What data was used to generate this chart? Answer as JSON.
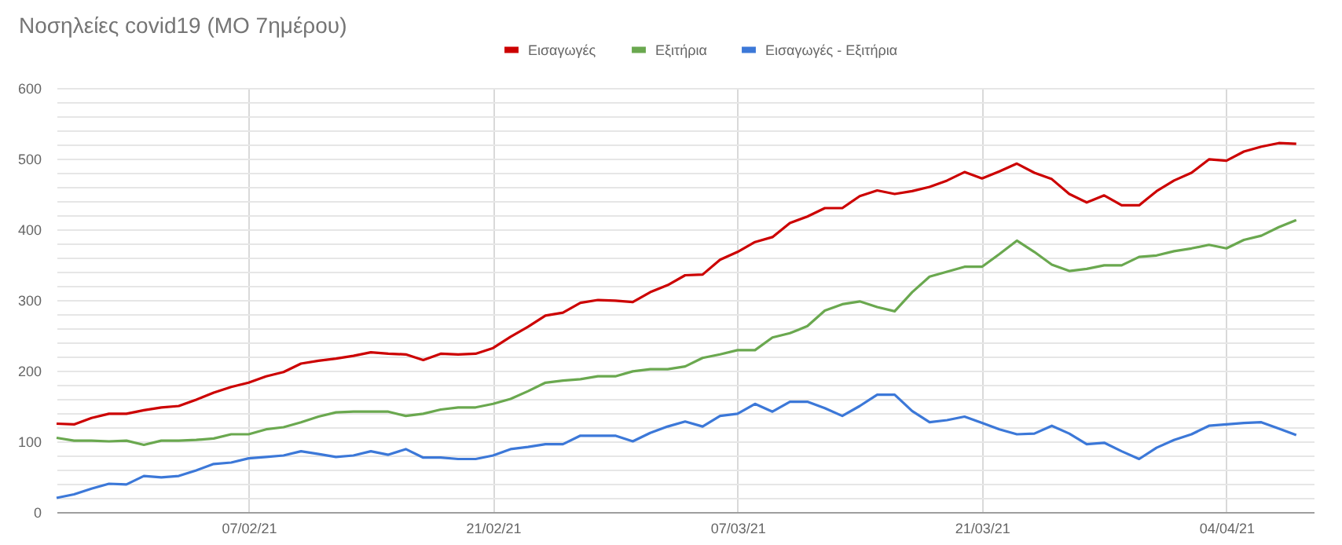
{
  "chart_data": {
    "type": "line",
    "title": "Νοσηλείες covid19 (ΜΟ 7ημέρου)",
    "x": [
      "2021-01-27",
      "2021-01-28",
      "2021-01-29",
      "2021-01-30",
      "2021-01-31",
      "2021-02-01",
      "2021-02-02",
      "2021-02-03",
      "2021-02-04",
      "2021-02-05",
      "2021-02-06",
      "2021-02-07",
      "2021-02-08",
      "2021-02-09",
      "2021-02-10",
      "2021-02-11",
      "2021-02-12",
      "2021-02-13",
      "2021-02-14",
      "2021-02-15",
      "2021-02-16",
      "2021-02-17",
      "2021-02-18",
      "2021-02-19",
      "2021-02-20",
      "2021-02-21",
      "2021-02-22",
      "2021-02-23",
      "2021-02-24",
      "2021-02-25",
      "2021-02-26",
      "2021-02-27",
      "2021-02-28",
      "2021-03-01",
      "2021-03-02",
      "2021-03-03",
      "2021-03-04",
      "2021-03-05",
      "2021-03-06",
      "2021-03-07",
      "2021-03-08",
      "2021-03-09",
      "2021-03-10",
      "2021-03-11",
      "2021-03-12",
      "2021-03-13",
      "2021-03-14",
      "2021-03-15",
      "2021-03-16",
      "2021-03-17",
      "2021-03-18",
      "2021-03-19",
      "2021-03-20",
      "2021-03-21",
      "2021-03-22",
      "2021-03-23",
      "2021-03-24",
      "2021-03-25",
      "2021-03-26",
      "2021-03-27",
      "2021-03-28",
      "2021-03-29",
      "2021-03-30",
      "2021-03-31",
      "2021-04-01",
      "2021-04-02",
      "2021-04-03",
      "2021-04-04",
      "2021-04-05",
      "2021-04-06",
      "2021-04-07",
      "2021-04-08"
    ],
    "series": [
      {
        "name": "Εισαγωγές",
        "color": "#cc0000",
        "values": [
          125,
          124,
          133,
          139,
          139,
          144,
          148,
          150,
          159,
          169,
          177,
          183,
          192,
          198,
          210,
          214,
          217,
          221,
          226,
          224,
          223,
          215,
          224,
          223,
          224,
          232,
          248,
          262,
          278,
          282,
          296,
          300,
          299,
          297,
          311,
          321,
          335,
          336,
          357,
          368,
          382,
          389,
          409,
          418,
          430,
          430,
          447,
          455,
          450,
          454,
          460,
          469,
          481,
          472,
          482,
          493,
          480,
          471,
          450,
          438,
          448,
          434,
          434,
          454,
          469,
          480,
          499,
          497,
          510,
          517,
          522,
          521
        ]
      },
      {
        "name": "Εξιτήρια",
        "color": "#6aa84f",
        "values": [
          105,
          101,
          101,
          100,
          101,
          95,
          101,
          101,
          102,
          104,
          110,
          110,
          117,
          120,
          127,
          135,
          141,
          142,
          142,
          142,
          136,
          139,
          145,
          148,
          148,
          153,
          160,
          171,
          183,
          186,
          188,
          192,
          192,
          199,
          202,
          202,
          206,
          218,
          223,
          229,
          229,
          247,
          253,
          263,
          285,
          294,
          298,
          290,
          284,
          311,
          333,
          340,
          347,
          347,
          365,
          384,
          368,
          350,
          341,
          344,
          349,
          349,
          361,
          363,
          369,
          373,
          378,
          373,
          385,
          391,
          403,
          413
        ]
      },
      {
        "name": "Εισαγωγές - Εξιτήρια",
        "color": "#3c78d8",
        "values": [
          20,
          25,
          33,
          40,
          39,
          51,
          49,
          51,
          59,
          68,
          70,
          76,
          78,
          80,
          86,
          82,
          78,
          80,
          86,
          81,
          89,
          77,
          77,
          75,
          75,
          80,
          89,
          92,
          96,
          96,
          108,
          108,
          108,
          100,
          112,
          121,
          128,
          121,
          136,
          139,
          153,
          142,
          156,
          156,
          147,
          136,
          150,
          166,
          166,
          143,
          127,
          130,
          135,
          126,
          117,
          110,
          111,
          122,
          111,
          96,
          98,
          86,
          75,
          91,
          102,
          110,
          122,
          124,
          126,
          127,
          118,
          109
        ]
      }
    ],
    "xlim": [
      "2021-01-27",
      "2021-04-09"
    ],
    "xticks": [
      {
        "value": "2021-02-07",
        "label": "07/02/21"
      },
      {
        "value": "2021-02-21",
        "label": "21/02/21"
      },
      {
        "value": "2021-03-07",
        "label": "07/03/21"
      },
      {
        "value": "2021-03-21",
        "label": "21/03/21"
      },
      {
        "value": "2021-04-04",
        "label": "04/04/21"
      }
    ],
    "ylim": [
      0,
      600
    ],
    "yticks": [
      0,
      {
        "value": 20,
        "label": null
      },
      {
        "value": 40,
        "label": null
      },
      {
        "value": 60,
        "label": null
      },
      {
        "value": 80,
        "label": null
      },
      100,
      {
        "value": 120,
        "label": null
      },
      {
        "value": 140,
        "label": null
      },
      {
        "value": 160,
        "label": null
      },
      {
        "value": 180,
        "label": null
      },
      200,
      {
        "value": 220,
        "label": null
      },
      {
        "value": 240,
        "label": null
      },
      {
        "value": 260,
        "label": null
      },
      {
        "value": 280,
        "label": null
      },
      300,
      {
        "value": 320,
        "label": null
      },
      {
        "value": 340,
        "label": null
      },
      {
        "value": 360,
        "label": null
      },
      {
        "value": 380,
        "label": null
      },
      400,
      {
        "value": 420,
        "label": null
      },
      {
        "value": 440,
        "label": null
      },
      {
        "value": 460,
        "label": null
      },
      {
        "value": 480,
        "label": null
      },
      500,
      {
        "value": 520,
        "label": null
      },
      {
        "value": 540,
        "label": null
      },
      {
        "value": 560,
        "label": null
      },
      {
        "value": 580,
        "label": null
      },
      600
    ],
    "grid": true,
    "legend": "top",
    "line_style": "solid"
  }
}
